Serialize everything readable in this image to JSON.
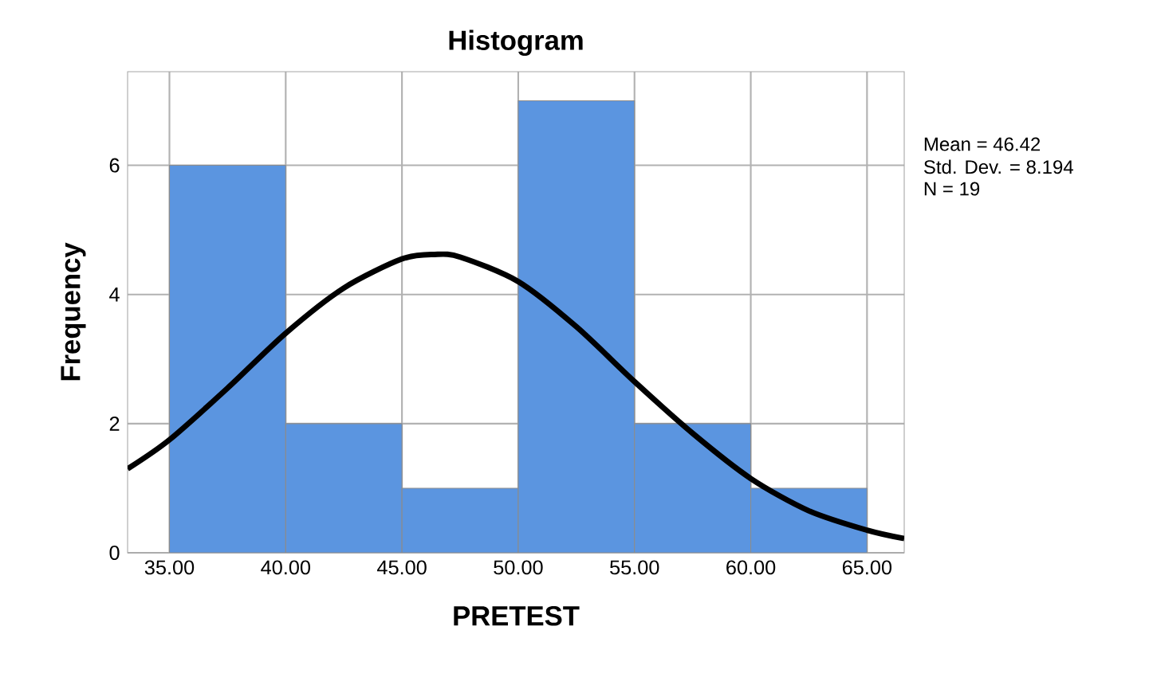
{
  "chart_data": {
    "type": "histogram",
    "title": "Histogram",
    "xlabel": "PRETEST",
    "ylabel": "Frequency",
    "annotations": [
      "Mean = 46.42",
      "Std. Dev. = 8.194",
      "N = 19"
    ],
    "xlim": [
      33.2,
      66.6
    ],
    "ylim": [
      0,
      7.45
    ],
    "xticks": [
      {
        "value": 35,
        "label": "35.00"
      },
      {
        "value": 40,
        "label": "40.00"
      },
      {
        "value": 45,
        "label": "45.00"
      },
      {
        "value": 50,
        "label": "50.00"
      },
      {
        "value": 55,
        "label": "55.00"
      },
      {
        "value": 60,
        "label": "60.00"
      },
      {
        "value": 65,
        "label": "65.00"
      }
    ],
    "yticks": [
      0,
      2,
      4,
      6
    ],
    "grid": true,
    "series": [
      {
        "color": "#5b95e0",
        "bins": [
          35,
          40,
          45,
          50,
          55,
          60,
          65
        ],
        "values": [
          6,
          2,
          1,
          7,
          2,
          1
        ]
      },
      {
        "type": "line",
        "color": "#000000",
        "x": [
          33.2,
          35,
          37.5,
          40,
          42.5,
          45,
          46.4,
          47.5,
          50,
          52.5,
          55,
          57.5,
          60,
          62.5,
          65,
          66.6
        ],
        "values": [
          1.3,
          1.75,
          2.55,
          3.4,
          4.1,
          4.55,
          4.62,
          4.58,
          4.2,
          3.5,
          2.65,
          1.85,
          1.15,
          0.65,
          0.35,
          0.22
        ]
      }
    ]
  }
}
